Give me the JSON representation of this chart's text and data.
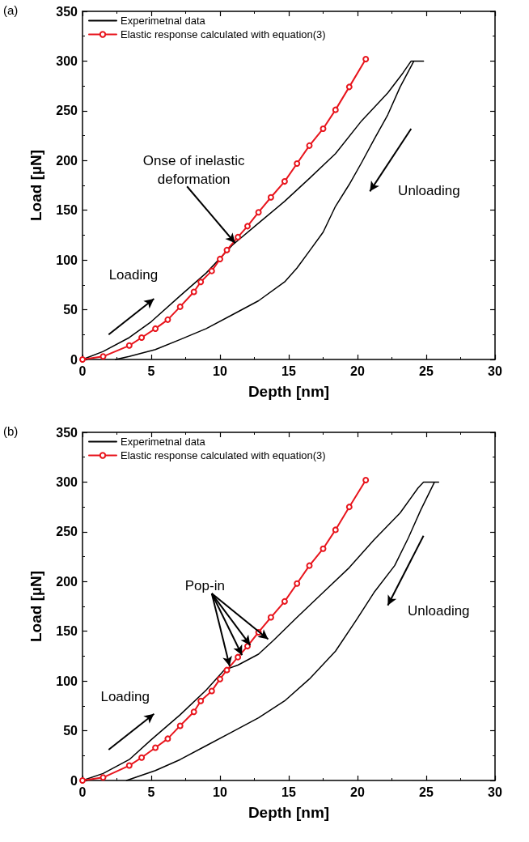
{
  "chart_data": [
    {
      "type": "line",
      "title": "(a)",
      "xlabel": "Depth [nm]",
      "ylabel": "Load [µN]",
      "xlim": [
        0,
        30
      ],
      "xticks": [
        0,
        5,
        10,
        15,
        20,
        25,
        30
      ],
      "ylim": [
        0,
        350
      ],
      "yticks": [
        0,
        50,
        100,
        150,
        200,
        250,
        300,
        350
      ],
      "grid": false,
      "legend": "top left",
      "line_style": "solid",
      "annotations": [
        "Loading",
        "Unloading",
        {
          "text": "Onse of inelastic deformation",
          "x": 11.1,
          "y": 117
        }
      ],
      "series": [
        {
          "name": "Experimetnal data",
          "color": "#000000",
          "marker": "none",
          "x": [
            0,
            1.5,
            3.4,
            5,
            7.1,
            9.0,
            10.9,
            12.8,
            14.7,
            16.5,
            18.4,
            20.3,
            22.2,
            23.3,
            23.9,
            24.8,
            24.1,
            23.1,
            22.2,
            21.2,
            20.3,
            19.4,
            18.4,
            17.5,
            16.5,
            15.6,
            14.7,
            12.8,
            10.9,
            9.0,
            7.1,
            5.3,
            3.4,
            2.4
          ],
          "values": [
            0,
            8,
            22,
            38,
            64,
            87,
            115,
            137,
            159,
            182,
            207,
            240,
            268,
            288,
            300,
            300,
            300,
            274,
            246,
            221,
            198,
            176,
            154,
            128,
            109,
            92,
            78,
            59,
            45,
            31,
            20,
            10,
            3,
            0
          ]
        },
        {
          "name": "Elastic response calculated with equation(3)",
          "color": "#e8141c",
          "marker": "circle",
          "x": [
            0,
            1.5,
            3.4,
            4.3,
            5.3,
            6.2,
            7.1,
            8.1,
            8.6,
            9.4,
            10,
            10.5,
            11.3,
            12.0,
            12.8,
            13.7,
            14.7,
            15.6,
            16.5,
            17.5,
            18.4,
            19.4,
            20.6
          ],
          "values": [
            0,
            3,
            14,
            22,
            31,
            40,
            53,
            68,
            78,
            89,
            101,
            110,
            123,
            134,
            148,
            163,
            179,
            197,
            215,
            232,
            251,
            274,
            302
          ]
        }
      ]
    },
    {
      "type": "line",
      "title": "(b)",
      "xlabel": "Depth [nm]",
      "ylabel": "Load [µN]",
      "xlim": [
        0,
        30
      ],
      "xticks": [
        0,
        5,
        10,
        15,
        20,
        25,
        30
      ],
      "ylim": [
        0,
        350
      ],
      "yticks": [
        0,
        50,
        100,
        150,
        200,
        250,
        300,
        350
      ],
      "grid": false,
      "legend": "top left",
      "line_style": "solid",
      "annotations": [
        "Loading",
        "Unloading",
        {
          "text": "Pop-in",
          "x": 11.6,
          "y": 126
        }
      ],
      "series": [
        {
          "name": "Experimetnal data",
          "color": "#000000",
          "marker": "none",
          "x": [
            0,
            1.5,
            3.4,
            5,
            7.1,
            9.0,
            10.3,
            11.3,
            12.8,
            13.9,
            15.6,
            17.5,
            19.4,
            21.2,
            23.1,
            24.4,
            24.8,
            25.9,
            25.6,
            24.6,
            23.7,
            22.7,
            21.2,
            19.9,
            18.4,
            16.5,
            14.7,
            12.8,
            10.9,
            9.0,
            7.1,
            5.3,
            3.2
          ],
          "values": [
            0,
            7,
            21,
            41,
            66,
            91,
            111,
            116,
            127,
            141,
            164,
            189,
            214,
            242,
            269,
            294,
            300,
            300,
            300,
            272,
            244,
            216,
            189,
            161,
            130,
            102,
            80,
            63,
            49,
            35,
            21,
            10,
            0
          ]
        },
        {
          "name": "Elastic response calculated with equation(3)",
          "color": "#e8141c",
          "marker": "circle",
          "x": [
            0,
            1.5,
            3.4,
            4.3,
            5.3,
            6.2,
            7.1,
            8.1,
            8.6,
            9.4,
            10,
            10.5,
            11.3,
            12.0,
            12.8,
            13.7,
            14.7,
            15.6,
            16.5,
            17.5,
            18.4,
            19.4,
            20.6
          ],
          "values": [
            0,
            3,
            15,
            23,
            33,
            42,
            55,
            69,
            80,
            90,
            102,
            111,
            124,
            135,
            149,
            164,
            180,
            198,
            216,
            233,
            252,
            275,
            302
          ]
        }
      ]
    }
  ]
}
